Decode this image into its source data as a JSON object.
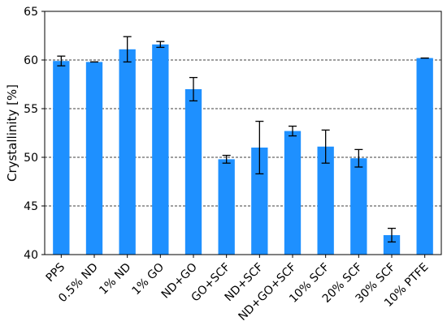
{
  "chart_data": {
    "type": "bar",
    "title": "",
    "xlabel": "",
    "ylabel": "Crystallinity [%]",
    "categories": [
      "PPS",
      "0.5% ND",
      "1% ND",
      "1% GO",
      "ND+GO",
      "GO+SCF",
      "ND+SCF",
      "ND+GO+SCF",
      "10% SCF",
      "20% SCF",
      "30% SCF",
      "10% PTFE"
    ],
    "values": [
      59.9,
      59.8,
      61.1,
      61.6,
      57.0,
      49.8,
      51.0,
      52.7,
      51.1,
      49.9,
      42.0,
      60.2
    ],
    "errors": [
      0.5,
      0.0,
      1.3,
      0.3,
      1.2,
      0.4,
      2.7,
      0.5,
      1.7,
      0.9,
      0.7,
      0.0
    ],
    "ylim": [
      40,
      65
    ],
    "yticks": [
      40,
      45,
      50,
      55,
      60,
      65
    ],
    "grid": "horizontal dashed",
    "bar_color": "#1e90ff",
    "error_color": "#000000"
  }
}
